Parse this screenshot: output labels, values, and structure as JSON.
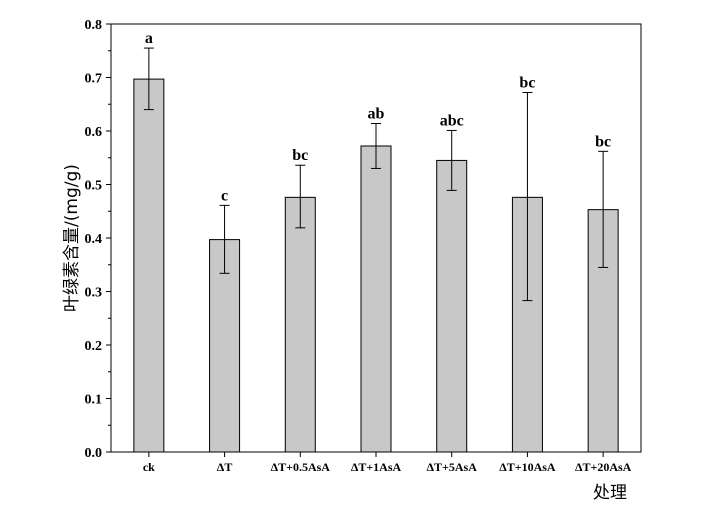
{
  "chart_data": {
    "type": "bar",
    "categories": [
      "ck",
      "ΔT",
      "ΔT+0.5AsA",
      "ΔT+1AsA",
      "ΔT+5AsA",
      "ΔT+10AsA",
      "ΔT+20AsA"
    ],
    "values": [
      0.697,
      0.397,
      0.476,
      0.572,
      0.545,
      0.476,
      0.453
    ],
    "error_low": [
      0.64,
      0.334,
      0.419,
      0.53,
      0.489,
      0.283,
      0.345
    ],
    "error_high": [
      0.755,
      0.461,
      0.536,
      0.614,
      0.601,
      0.672,
      0.562
    ],
    "significance_labels": [
      "a",
      "c",
      "bc",
      "ab",
      "abc",
      "bc",
      "bc"
    ],
    "title": "",
    "xlabel": "处理",
    "ylabel": "叶绿素含量/(mg/g)",
    "ylim": [
      0,
      0.8
    ],
    "yticks": [
      "0.0",
      "0.1",
      "0.2",
      "0.3",
      "0.4",
      "0.5",
      "0.6",
      "0.7",
      "0.8"
    ],
    "grid": false,
    "bar_color": "#c8c8c8",
    "edge_color": "#000000"
  }
}
